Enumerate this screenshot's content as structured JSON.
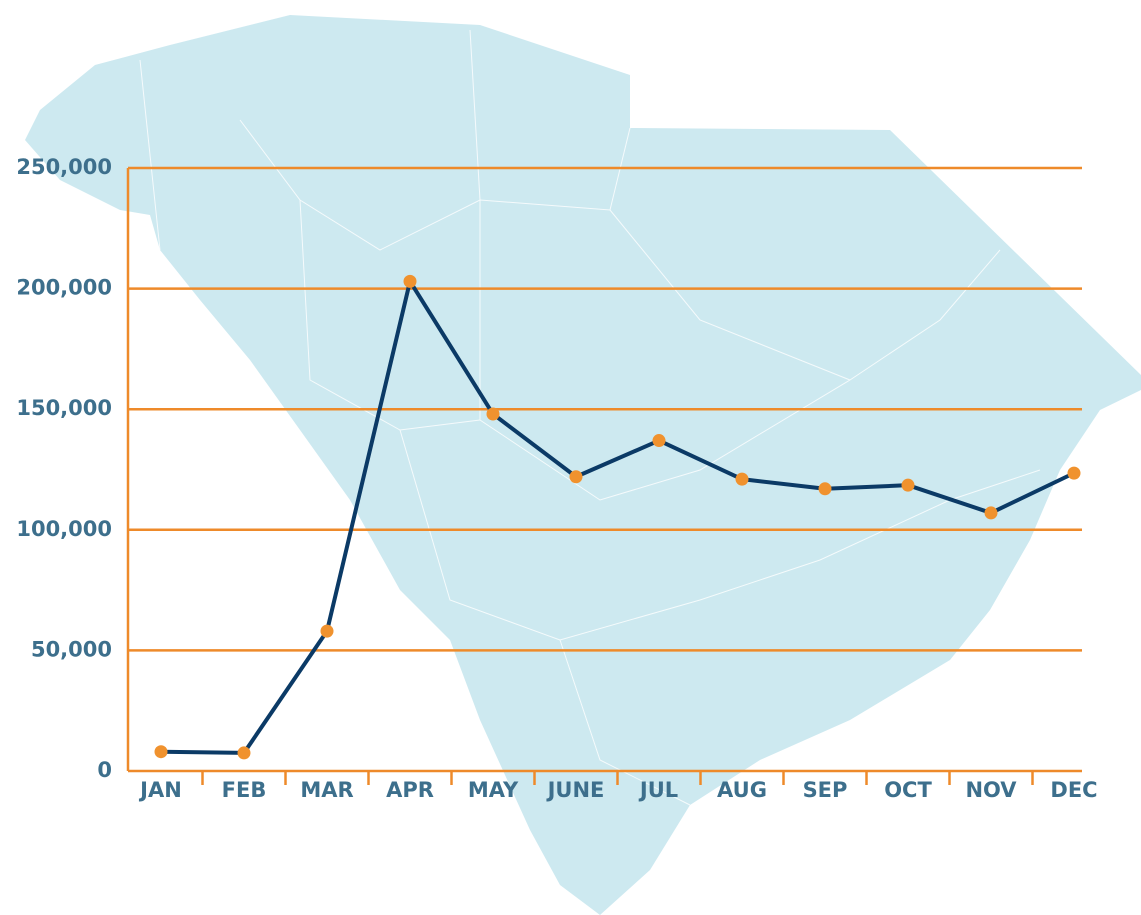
{
  "chart_data": {
    "type": "line",
    "categories": [
      "JAN",
      "FEB",
      "MAR",
      "APR",
      "MAY",
      "JUNE",
      "JUL",
      "AUG",
      "SEP",
      "OCT",
      "NOV",
      "DEC"
    ],
    "values": [
      8000,
      7500,
      58000,
      203000,
      148000,
      122000,
      137000,
      121000,
      117000,
      118500,
      107000,
      123500
    ],
    "color": "#0b3a66",
    "marker_color": "#f0922e",
    "grid_color": "#ee8a2a",
    "ylim": [
      0,
      250000
    ],
    "yticks": [
      0,
      {
        "value": 50000,
        "label": "50,000"
      },
      {
        "value": 100000,
        "label": "100,000"
      },
      {
        "value": 150000,
        "label": "150,000"
      },
      {
        "value": 200000,
        "label": "200,000"
      },
      {
        "value": 250000,
        "label": "250,000"
      }
    ],
    "grid": true
  }
}
